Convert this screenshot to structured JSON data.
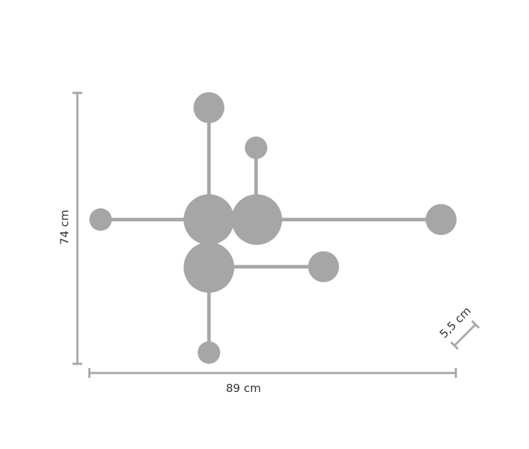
{
  "colors": {
    "shape": "#a6a6a6",
    "dimension_line": "#a6a6a6",
    "text": "#333333"
  },
  "dimensions": {
    "height_label": "74 cm",
    "width_label": "89 cm",
    "depth_label": "5,5 cm"
  }
}
